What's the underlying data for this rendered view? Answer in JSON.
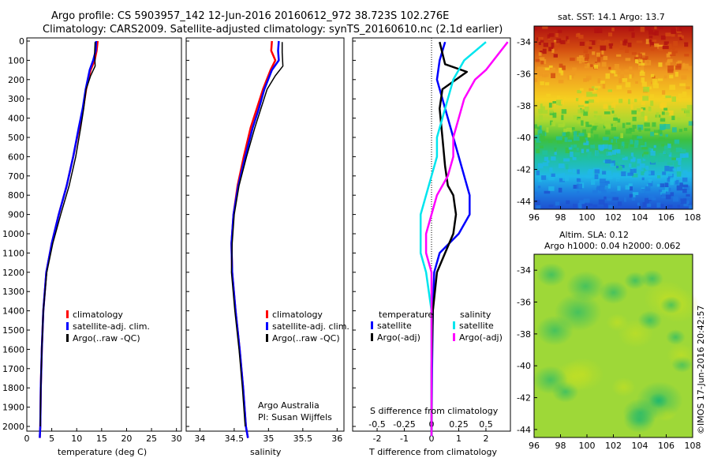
{
  "header": {
    "line1": "Argo profile: CS 5903957_142 12-Jun-2016 20160612_972 38.723S 102.276E",
    "line2": "Climatology: CARS2009. Satellite-adjusted climatology: synTS_20160610.nc (2.1d earlier)"
  },
  "map_titles": {
    "sst": "sat. SST: 14.1 Argo: 13.7",
    "sla_line1": "Altim. SLA: 0.12",
    "sla_line2": "Argo h1000: 0.04 h2000: 0.062"
  },
  "credit": {
    "org": "Argo Australia",
    "pi": "PI: Susan Wijffels",
    "stamp": "©IMOS 17-Jun-2016 20:42:57"
  },
  "colors": {
    "climatology": "#ff0000",
    "satellite": "#0000ff",
    "argo": "#000000",
    "sal_satellite": "#00e5ee",
    "sal_argo": "#ff00ff"
  },
  "depth_ticks": [
    "0",
    "100",
    "200",
    "300",
    "400",
    "500",
    "600",
    "700",
    "800",
    "900",
    "1000",
    "1100",
    "1200",
    "1300",
    "1400",
    "1500",
    "1600",
    "1700",
    "1800",
    "1900",
    "2000"
  ],
  "legend_profile": [
    "climatology",
    "satellite-adj. clim.",
    "Argo(..raw -QC)"
  ],
  "legend_diff": {
    "temp_title": "temperature",
    "sal_title": "salinity",
    "temp_items": [
      "satellite",
      "Argo(-adj)"
    ],
    "sal_items": [
      "satellite",
      "Argo(-adj)"
    ]
  },
  "chart_data": [
    {
      "type": "line",
      "xlabel": "temperature (deg C)",
      "ylim": [
        2100,
        0
      ],
      "xlim": [
        0,
        31
      ],
      "x_ticks": [
        "0",
        "5",
        "10",
        "15",
        "20",
        "25",
        "30"
      ],
      "series": [
        {
          "name": "climatology",
          "x": [
            14.2,
            14.0,
            13.6,
            12.8,
            11.9,
            11.3,
            10.5,
            9.3,
            8.0,
            6.4,
            5.0,
            3.9,
            3.3,
            3.0,
            2.8,
            2.7,
            2.6
          ],
          "y": [
            0,
            50,
            100,
            150,
            250,
            350,
            450,
            600,
            750,
            900,
            1050,
            1200,
            1400,
            1600,
            1800,
            2000,
            2060
          ]
        },
        {
          "name": "satellite-adj. clim.",
          "x": [
            13.9,
            13.8,
            13.3,
            12.6,
            11.8,
            11.2,
            10.4,
            9.3,
            8.0,
            6.4,
            5.0,
            3.9,
            3.3,
            3.0,
            2.8,
            2.7,
            2.6
          ],
          "y": [
            0,
            50,
            100,
            150,
            250,
            350,
            450,
            600,
            750,
            900,
            1050,
            1200,
            1400,
            1600,
            1800,
            2000,
            2060
          ]
        },
        {
          "name": "Argo(..raw -QC)",
          "x": [
            13.7,
            13.6,
            13.7,
            12.8,
            11.9,
            11.4,
            10.8,
            9.8,
            8.5,
            6.8,
            5.2,
            4.0,
            3.3,
            3.0,
            2.8,
            2.7
          ],
          "y": [
            5,
            60,
            130,
            180,
            250,
            350,
            450,
            600,
            750,
            900,
            1050,
            1200,
            1400,
            1600,
            1800,
            2000
          ]
        }
      ]
    },
    {
      "type": "line",
      "xlabel": "salinity",
      "ylim": [
        2100,
        0
      ],
      "xlim": [
        33.8,
        36.1
      ],
      "x_ticks": [
        "34",
        "34.5",
        "35",
        "35.5",
        "36"
      ],
      "series": [
        {
          "name": "climatology",
          "x": [
            35.05,
            35.04,
            35.1,
            35.03,
            34.92,
            34.83,
            34.74,
            34.64,
            34.55,
            34.49,
            34.46,
            34.47,
            34.52,
            34.58,
            34.63,
            34.67,
            34.7
          ],
          "y": [
            0,
            50,
            100,
            150,
            250,
            350,
            450,
            600,
            750,
            900,
            1050,
            1200,
            1400,
            1600,
            1800,
            2000,
            2060
          ]
        },
        {
          "name": "satellite-adj. clim.",
          "x": [
            35.15,
            35.14,
            35.15,
            35.05,
            34.94,
            34.86,
            34.77,
            34.66,
            34.56,
            34.49,
            34.46,
            34.47,
            34.52,
            34.58,
            34.63,
            34.67,
            34.7
          ],
          "y": [
            0,
            50,
            100,
            150,
            250,
            350,
            450,
            600,
            750,
            900,
            1050,
            1200,
            1400,
            1600,
            1800,
            2000,
            2060
          ]
        },
        {
          "name": "Argo(..raw -QC)",
          "x": [
            35.2,
            35.2,
            35.21,
            35.1,
            34.98,
            34.89,
            34.8,
            34.68,
            34.57,
            34.5,
            34.47,
            34.46,
            34.51,
            34.57,
            34.62,
            34.66
          ],
          "y": [
            5,
            60,
            130,
            180,
            250,
            350,
            450,
            600,
            750,
            900,
            1050,
            1200,
            1400,
            1600,
            1800,
            2000
          ]
        }
      ]
    },
    {
      "type": "line",
      "xlabel": "T difference from climatology",
      "xlabel_top": "S difference from climatology",
      "ylim": [
        2100,
        0
      ],
      "xlim": [
        -2.9,
        2.9
      ],
      "x_ticks": [
        "-2",
        "-1",
        "0",
        "1",
        "2"
      ],
      "x_ticks_top": [
        "-0.5",
        "-0.25",
        "0",
        "0.25",
        "0.5"
      ],
      "series": [
        {
          "name": "satellite (temperature)",
          "x": [
            0.5,
            0.3,
            0.2,
            0.4,
            0.6,
            0.8,
            1.0,
            1.2,
            1.4,
            1.4,
            1.0,
            0.3,
            0.1,
            0.05,
            0.02,
            0.0
          ],
          "y": [
            5,
            100,
            200,
            300,
            400,
            500,
            600,
            700,
            800,
            900,
            1000,
            1100,
            1200,
            1400,
            1700,
            2050
          ]
        },
        {
          "name": "Argo(-adj) (temperature)",
          "x": [
            0.3,
            0.5,
            1.3,
            0.4,
            0.3,
            0.4,
            0.5,
            0.6,
            0.8,
            0.9,
            0.8,
            0.5,
            0.2,
            0.05,
            0.0,
            0.0
          ],
          "y": [
            5,
            120,
            160,
            250,
            350,
            500,
            650,
            750,
            800,
            900,
            1000,
            1100,
            1200,
            1400,
            1700,
            2050
          ]
        },
        {
          "name": "satellite (salinity)",
          "x": [
            0.5,
            0.3,
            0.2,
            0.15,
            0.1,
            0.05,
            0.05,
            0.0,
            -0.05,
            -0.1,
            -0.1,
            -0.1,
            -0.05,
            0.0,
            0.0,
            0.0
          ],
          "y": [
            5,
            100,
            200,
            300,
            400,
            500,
            600,
            700,
            800,
            900,
            1000,
            1100,
            1200,
            1400,
            1700,
            2050
          ]
        },
        {
          "name": "Argo(-adj) (salinity)",
          "x": [
            0.7,
            0.5,
            0.4,
            0.3,
            0.25,
            0.2,
            0.2,
            0.15,
            0.05,
            0.0,
            -0.05,
            -0.05,
            0.0,
            0.0,
            0.0
          ],
          "y": [
            5,
            150,
            200,
            300,
            400,
            500,
            600,
            700,
            800,
            900,
            1000,
            1100,
            1200,
            1500,
            2050
          ]
        }
      ]
    },
    {
      "type": "heatmap",
      "title": "sat. SST: 14.1 Argo: 13.7",
      "xlim": [
        96,
        108
      ],
      "ylim": [
        -44.5,
        -33
      ],
      "x_ticks": [
        "96",
        "98",
        "100",
        "102",
        "104",
        "106",
        "108"
      ],
      "y_ticks": [
        "-34",
        "-36",
        "-38",
        "-40",
        "-42",
        "-44"
      ]
    },
    {
      "type": "heatmap",
      "title": "Altim. SLA: 0.12",
      "xlim": [
        96,
        108
      ],
      "ylim": [
        -44.5,
        -33
      ],
      "x_ticks": [
        "96",
        "98",
        "100",
        "102",
        "104",
        "106",
        "108"
      ],
      "y_ticks": [
        "-34",
        "-36",
        "-38",
        "-40",
        "-42",
        "-44"
      ]
    }
  ]
}
